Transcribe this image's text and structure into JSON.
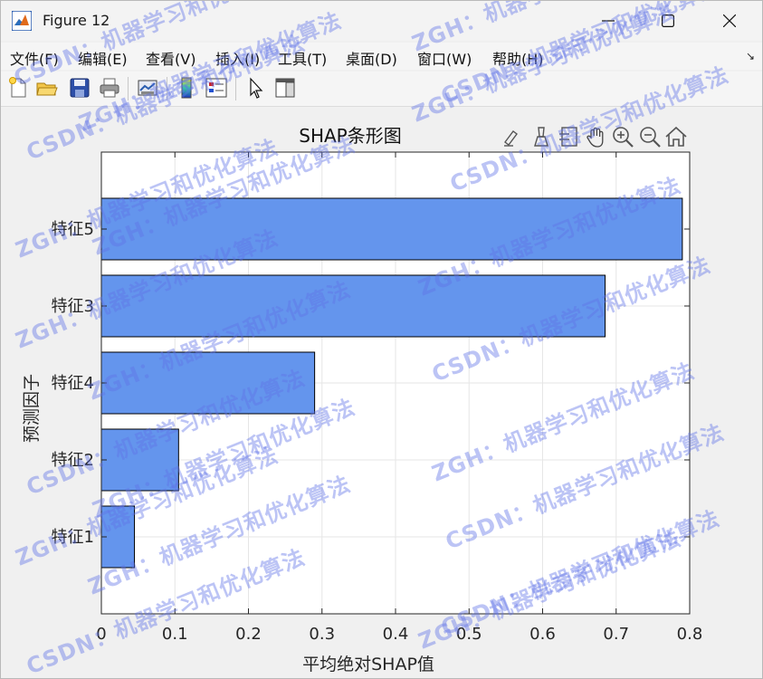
{
  "window": {
    "title": "Figure 12",
    "menus": [
      {
        "key": "file",
        "label": "文件(F)"
      },
      {
        "key": "edit",
        "label": "编辑(E)"
      },
      {
        "key": "view",
        "label": "查看(V)"
      },
      {
        "key": "insert",
        "label": "插入(I)"
      },
      {
        "key": "tools",
        "label": "工具(T)"
      },
      {
        "key": "desktop",
        "label": "桌面(D)"
      },
      {
        "key": "window",
        "label": "窗口(W)"
      },
      {
        "key": "help",
        "label": "帮助(H)"
      }
    ],
    "toolbar_icons": [
      "new-figure-icon",
      "open-file-icon",
      "save-icon",
      "print-icon",
      "link-plot-icon",
      "colorbar-icon",
      "legend-icon",
      "edit-plot-icon",
      "property-inspector-icon"
    ],
    "axes_toolbar_icons": [
      "brush-icon",
      "data-tips-icon",
      "restore-view-icon",
      "pan-icon",
      "zoom-in-icon",
      "zoom-out-icon",
      "home-icon"
    ]
  },
  "watermark": {
    "lines": [
      "ZGH：机器学习和优化算法",
      "CSDN：机器学习和优化算法"
    ],
    "color": "#5f73e6"
  },
  "chart_data": {
    "type": "bar",
    "orientation": "horizontal",
    "title": "SHAP条形图",
    "xlabel": "平均绝对SHAP值",
    "ylabel": "预测因子",
    "categories": [
      "特征1",
      "特征2",
      "特征4",
      "特征3",
      "特征5"
    ],
    "values": [
      0.045,
      0.105,
      0.29,
      0.685,
      0.79
    ],
    "xlim": [
      0,
      0.8
    ],
    "xticks": [
      "0",
      "0.1",
      "0.2",
      "0.3",
      "0.4",
      "0.5",
      "0.6",
      "0.7",
      "0.8"
    ],
    "grid": true,
    "bar_color": "#6495ed",
    "bar_edge_color": "#000000"
  }
}
